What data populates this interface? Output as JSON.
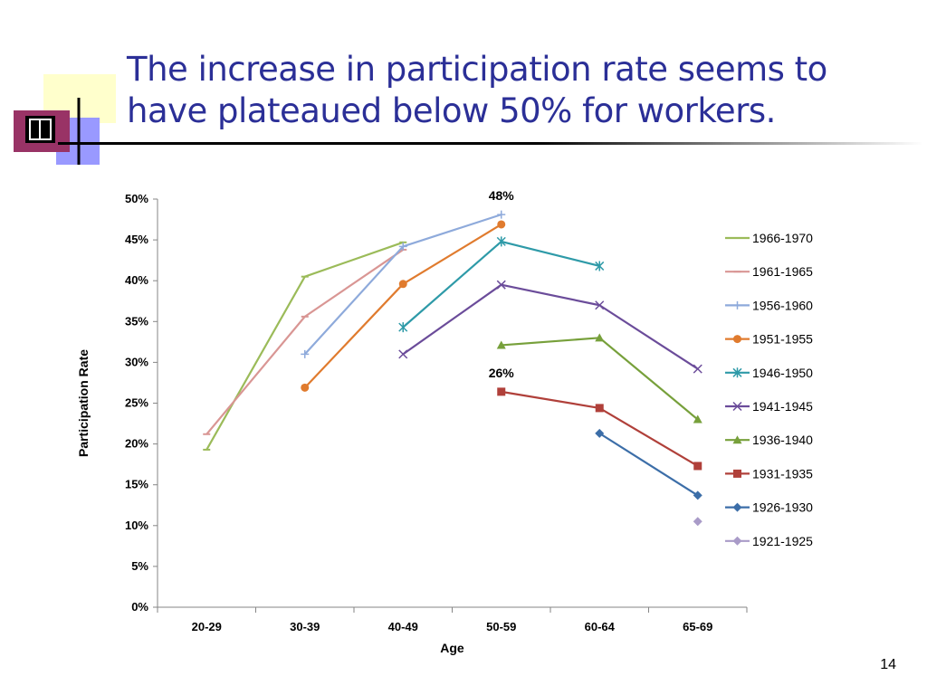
{
  "slide": {
    "title": "The increase in participation rate seems to have plateaued below 50% for workers.",
    "page_number": "14"
  },
  "colors": {
    "title": "#2b2f97",
    "logo_yellow": "#ffffcc",
    "logo_blue": "#9999ff",
    "logo_maroon": "#993366"
  },
  "chart_data": {
    "type": "line",
    "title": "",
    "xlabel": "Age",
    "ylabel": "Participation Rate",
    "categories": [
      "20-29",
      "30-39",
      "40-49",
      "50-59",
      "60-64",
      "65-69"
    ],
    "ylim": [
      0,
      0.5
    ],
    "yticks": [
      "0%",
      "5%",
      "10%",
      "15%",
      "20%",
      "25%",
      "30%",
      "35%",
      "40%",
      "45%",
      "50%"
    ],
    "grid": false,
    "legend_position": "right",
    "annotations": [
      {
        "text": "48%",
        "series": "1956-1960",
        "category": "50-59"
      },
      {
        "text": "26%",
        "series": "1931-1935",
        "category": "50-59"
      }
    ],
    "series": [
      {
        "name": "1966-1970",
        "color": "#9bbb59",
        "marker": "dash",
        "values": [
          0.193,
          0.405,
          0.447,
          null,
          null,
          null
        ]
      },
      {
        "name": "1961-1965",
        "color": "#d99694",
        "marker": "dash",
        "values": [
          0.212,
          0.356,
          0.438,
          null,
          null,
          null
        ]
      },
      {
        "name": "1956-1960",
        "color": "#8eaadb",
        "marker": "plus",
        "values": [
          null,
          0.31,
          0.442,
          0.481,
          null,
          null
        ]
      },
      {
        "name": "1951-1955",
        "color": "#e07b2e",
        "marker": "circle",
        "values": [
          null,
          0.269,
          0.396,
          0.469,
          null,
          null
        ]
      },
      {
        "name": "1946-1950",
        "color": "#2e9aa8",
        "marker": "star",
        "values": [
          null,
          null,
          0.343,
          0.448,
          0.418,
          null
        ]
      },
      {
        "name": "1941-1945",
        "color": "#6b4c9a",
        "marker": "x",
        "values": [
          null,
          null,
          0.31,
          0.395,
          0.37,
          0.292
        ]
      },
      {
        "name": "1936-1940",
        "color": "#77a03b",
        "marker": "triangle",
        "values": [
          null,
          null,
          null,
          0.321,
          0.33,
          0.23
        ]
      },
      {
        "name": "1931-1935",
        "color": "#b0403a",
        "marker": "square",
        "values": [
          null,
          null,
          null,
          0.264,
          0.244,
          0.173
        ]
      },
      {
        "name": "1926-1930",
        "color": "#3c6ea8",
        "marker": "diamond",
        "values": [
          null,
          null,
          null,
          null,
          0.213,
          0.137
        ]
      },
      {
        "name": "1921-1925",
        "color": "#a99bc8",
        "marker": "diamond",
        "values": [
          null,
          null,
          null,
          null,
          null,
          0.105
        ]
      }
    ]
  }
}
